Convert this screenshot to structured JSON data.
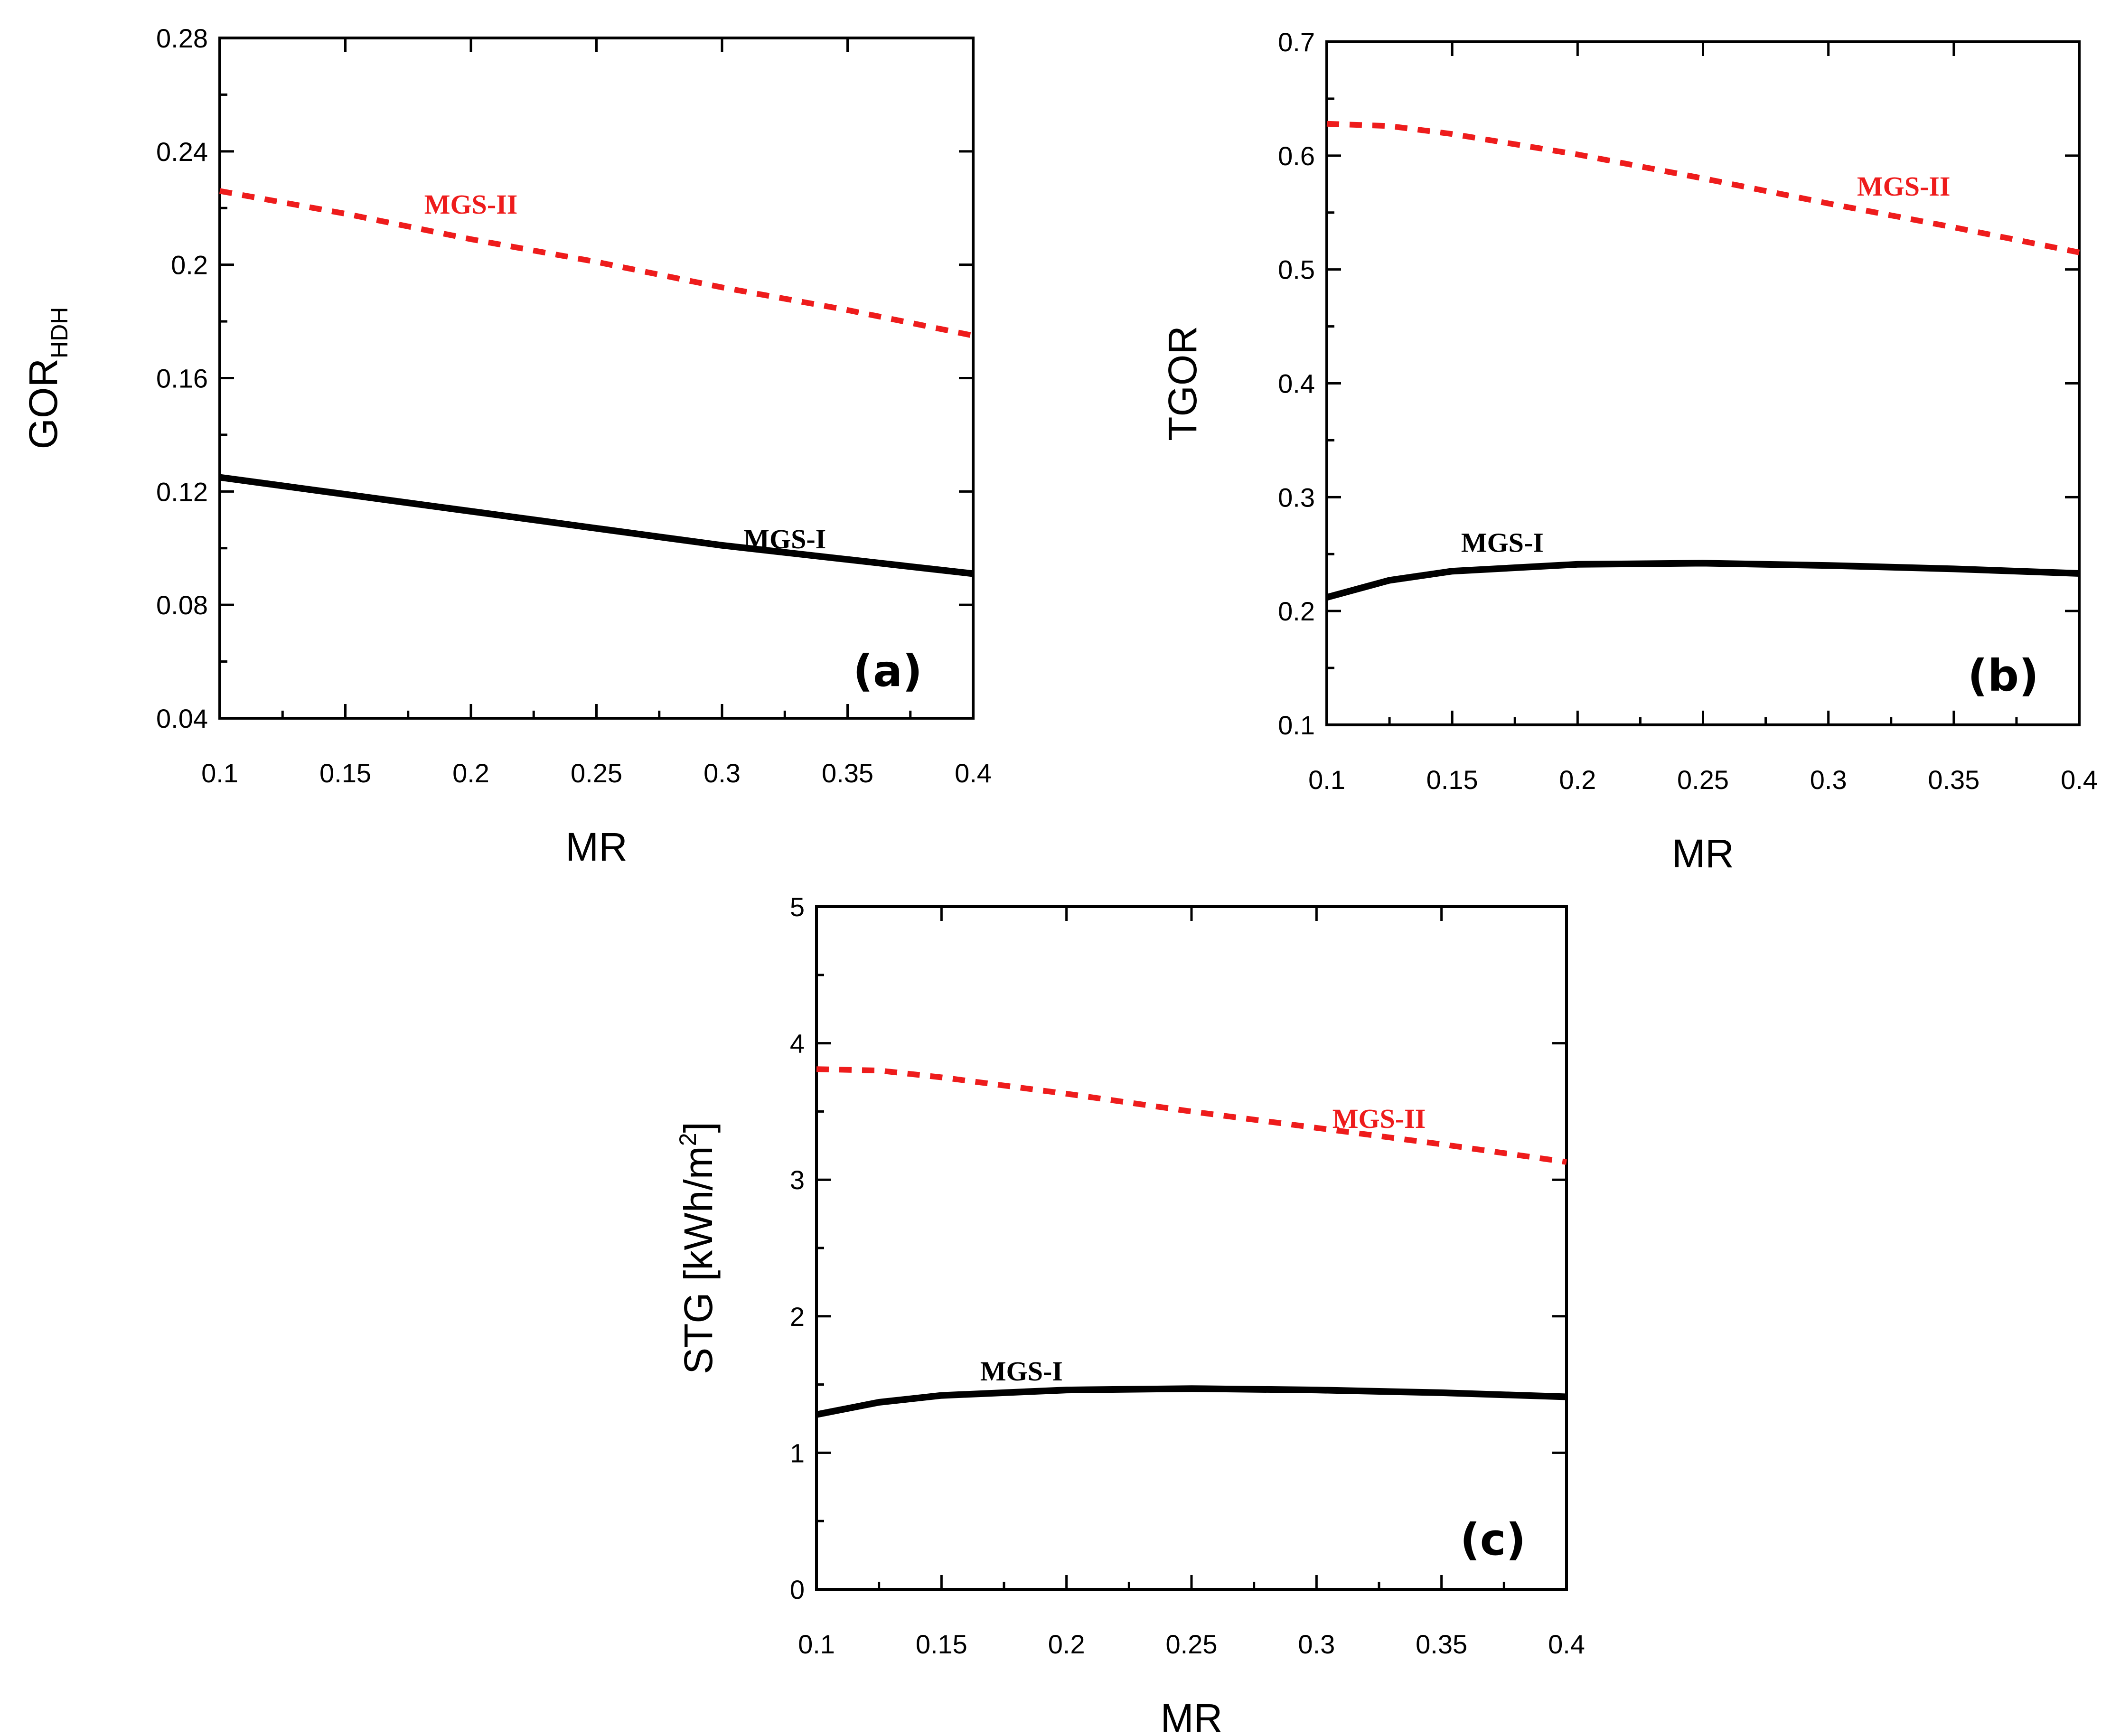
{
  "chart_data": [
    {
      "id": "a",
      "type": "line",
      "panel_label": "(a)",
      "xlabel": "MR",
      "ylabel": "GOR",
      "ylabel_sub": "HDH",
      "xlim": [
        0.1,
        0.4
      ],
      "ylim": [
        0.04,
        0.28
      ],
      "xticks": [
        "0.1",
        "0.15",
        "0.2",
        "0.25",
        "0.3",
        "0.35",
        "0.4"
      ],
      "yticks": [
        "0.04",
        "0.08",
        "0.12",
        "0.16",
        "0.2",
        "0.24",
        "0.28"
      ],
      "series": [
        {
          "name": "MGS-II",
          "style": "dashed",
          "color": "#ee1c1c",
          "x": [
            0.1,
            0.15,
            0.2,
            0.25,
            0.3,
            0.35,
            0.4
          ],
          "y": [
            0.226,
            0.218,
            0.209,
            0.201,
            0.192,
            0.184,
            0.175
          ]
        },
        {
          "name": "MGS-I",
          "style": "solid",
          "color": "#000000",
          "x": [
            0.1,
            0.15,
            0.2,
            0.25,
            0.3,
            0.35,
            0.4
          ],
          "y": [
            0.125,
            0.119,
            0.113,
            0.107,
            0.101,
            0.096,
            0.091
          ]
        }
      ],
      "labels": [
        {
          "text": "MGS-II",
          "x": 0.2,
          "y": 0.218,
          "color": "#ee1c1c"
        },
        {
          "text": "MGS-I",
          "x": 0.325,
          "y": 0.1,
          "color": "#000000"
        }
      ]
    },
    {
      "id": "b",
      "type": "line",
      "panel_label": "(b)",
      "xlabel": "MR",
      "ylabel": "TGOR",
      "ylabel_sub": "",
      "xlim": [
        0.1,
        0.4
      ],
      "ylim": [
        0.1,
        0.7
      ],
      "xticks": [
        "0.1",
        "0.15",
        "0.2",
        "0.25",
        "0.3",
        "0.35",
        "0.4"
      ],
      "yticks": [
        "0.1",
        "0.2",
        "0.3",
        "0.4",
        "0.5",
        "0.6",
        "0.7"
      ],
      "series": [
        {
          "name": "MGS-II",
          "style": "dashed",
          "color": "#ee1c1c",
          "x": [
            0.1,
            0.125,
            0.15,
            0.2,
            0.25,
            0.3,
            0.35,
            0.4
          ],
          "y": [
            0.628,
            0.626,
            0.619,
            0.601,
            0.58,
            0.558,
            0.537,
            0.515
          ]
        },
        {
          "name": "MGS-I",
          "style": "solid",
          "color": "#000000",
          "x": [
            0.1,
            0.125,
            0.15,
            0.2,
            0.25,
            0.3,
            0.35,
            0.4
          ],
          "y": [
            0.212,
            0.227,
            0.235,
            0.241,
            0.242,
            0.24,
            0.237,
            0.233
          ]
        }
      ],
      "labels": [
        {
          "text": "MGS-II",
          "x": 0.33,
          "y": 0.565,
          "color": "#ee1c1c"
        },
        {
          "text": "MGS-I",
          "x": 0.17,
          "y": 0.252,
          "color": "#000000"
        }
      ]
    },
    {
      "id": "c",
      "type": "line",
      "panel_label": "(c)",
      "xlabel": "MR",
      "ylabel": "STG [kWh/m",
      "ylabel_sup": "2",
      "ylabel_end": "]",
      "xlim": [
        0.1,
        0.4
      ],
      "ylim": [
        0,
        5
      ],
      "xticks": [
        "0.1",
        "0.15",
        "0.2",
        "0.25",
        "0.3",
        "0.35",
        "0.4"
      ],
      "yticks": [
        "0",
        "1",
        "2",
        "3",
        "4",
        "5"
      ],
      "series": [
        {
          "name": "MGS-II",
          "style": "dashed",
          "color": "#ee1c1c",
          "x": [
            0.1,
            0.125,
            0.15,
            0.2,
            0.25,
            0.3,
            0.35,
            0.4
          ],
          "y": [
            3.81,
            3.8,
            3.75,
            3.63,
            3.5,
            3.38,
            3.26,
            3.13
          ]
        },
        {
          "name": "MGS-I",
          "style": "solid",
          "color": "#000000",
          "x": [
            0.1,
            0.125,
            0.15,
            0.2,
            0.25,
            0.3,
            0.35,
            0.4
          ],
          "y": [
            1.28,
            1.37,
            1.42,
            1.46,
            1.47,
            1.46,
            1.44,
            1.41
          ]
        }
      ],
      "labels": [
        {
          "text": "MGS-II",
          "x": 0.325,
          "y": 3.38,
          "color": "#ee1c1c"
        },
        {
          "text": "MGS-I",
          "x": 0.182,
          "y": 1.53,
          "color": "#000000"
        }
      ]
    }
  ]
}
